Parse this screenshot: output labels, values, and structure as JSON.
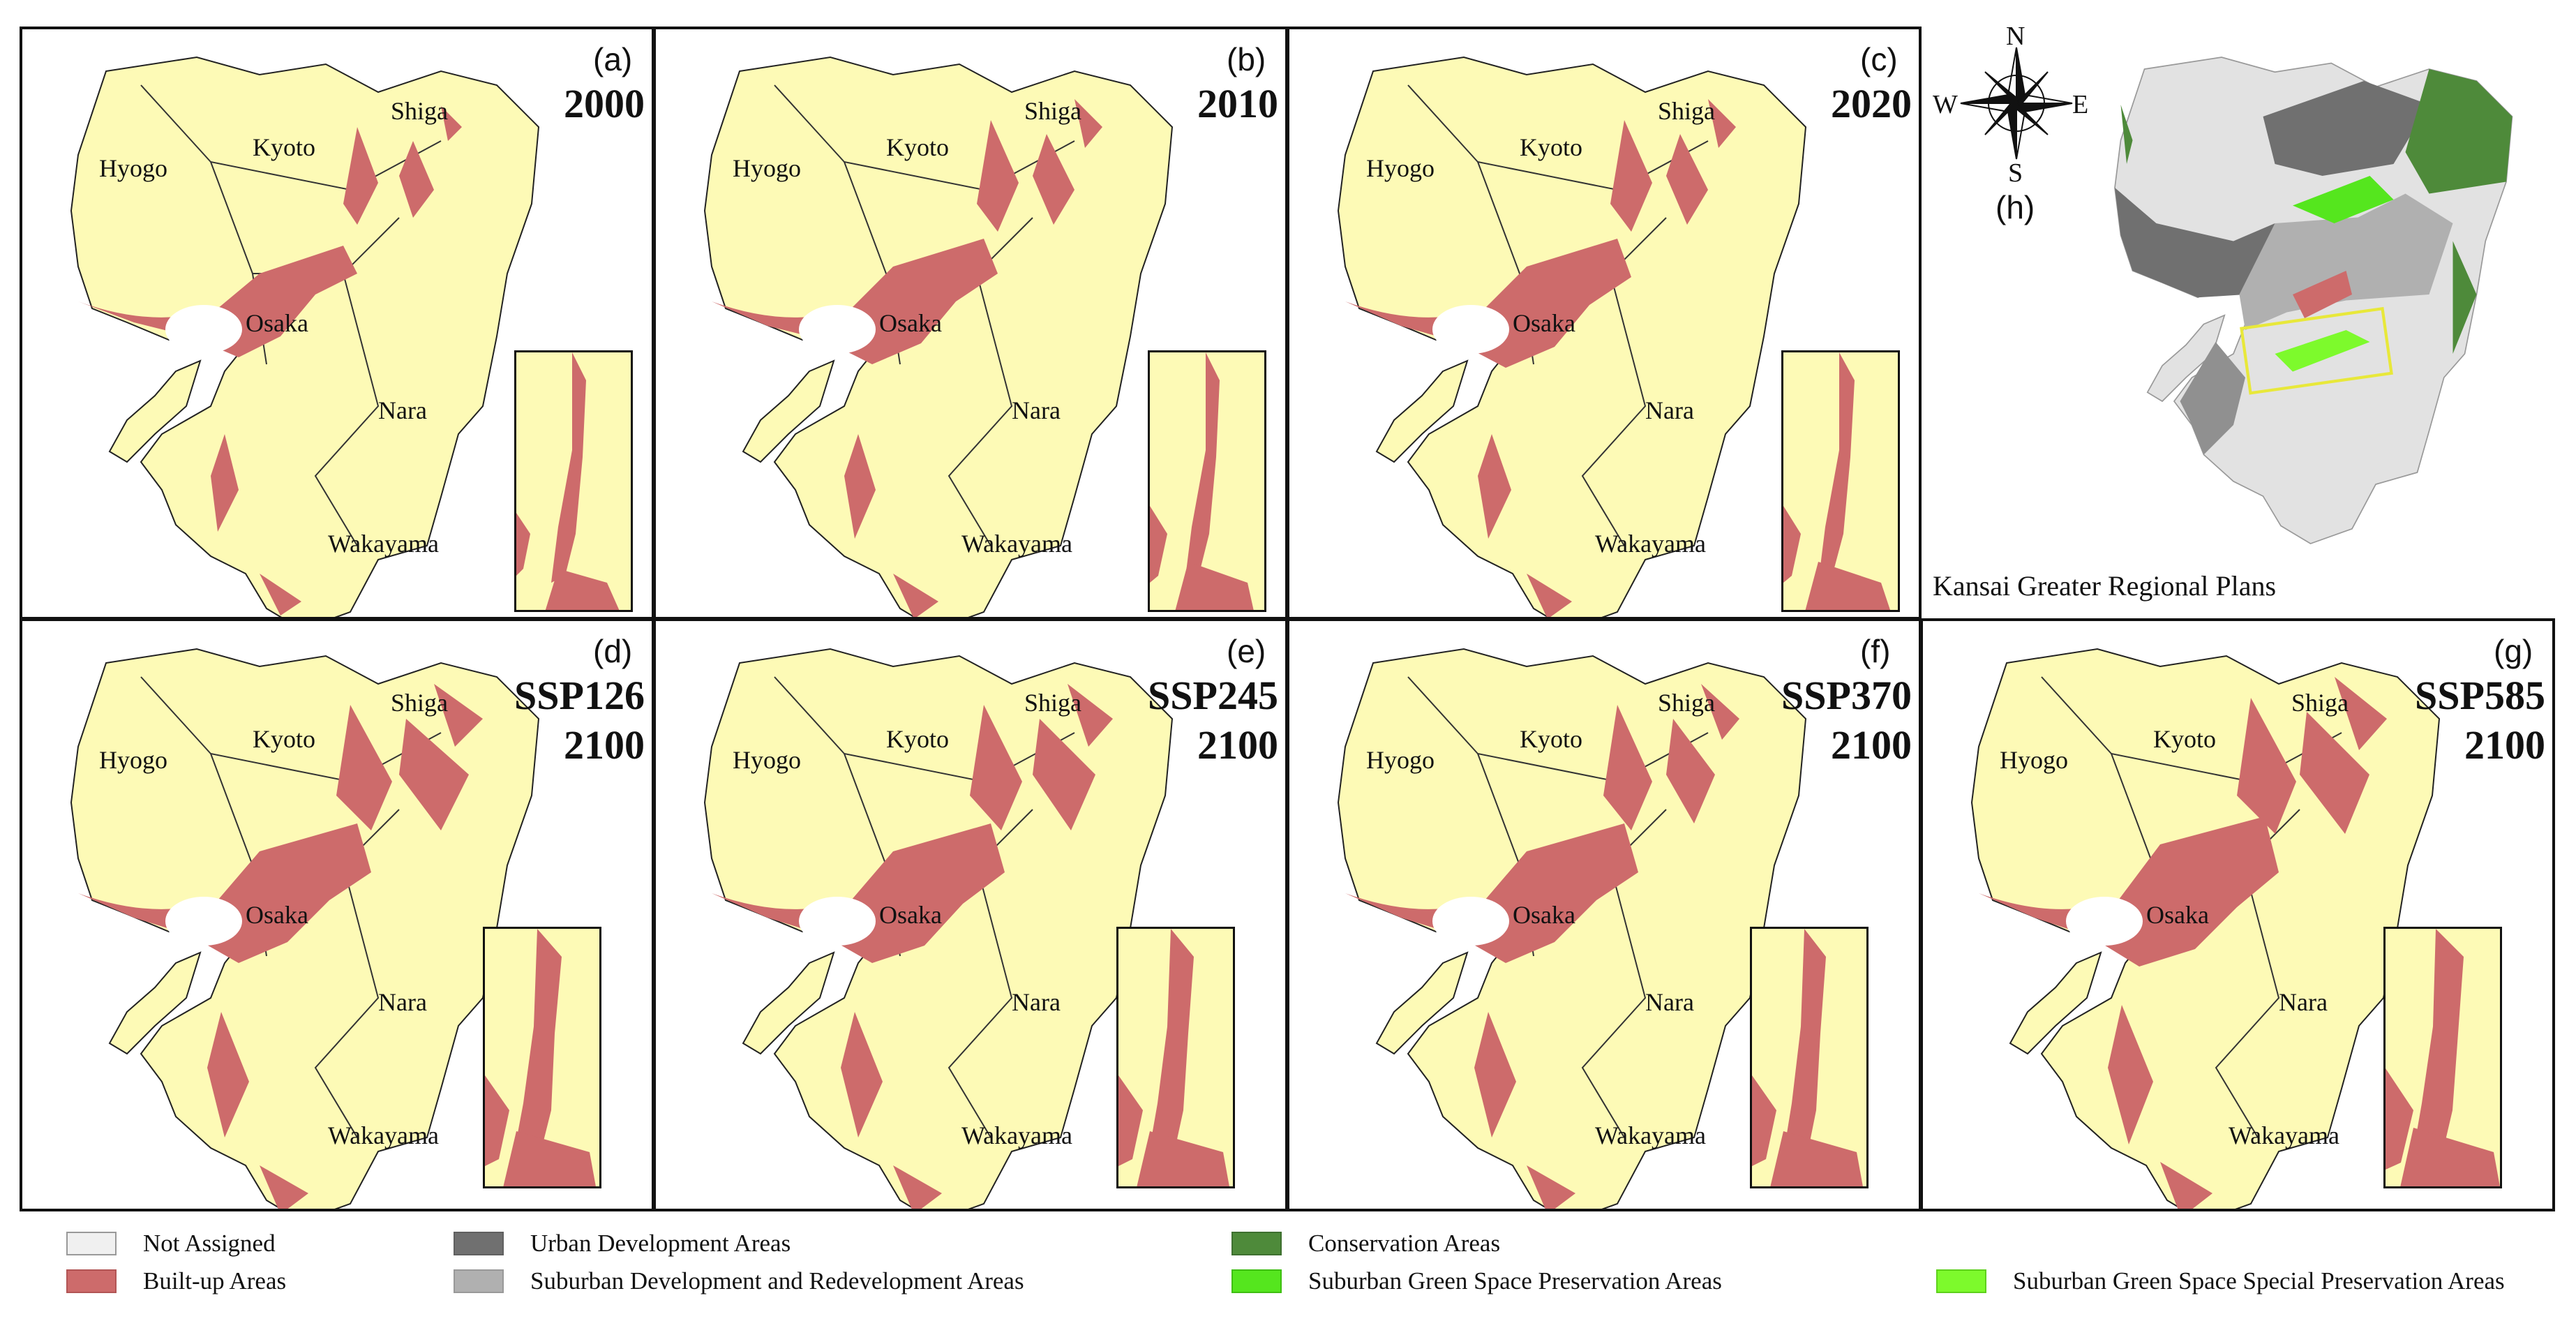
{
  "colors": {
    "land": "#fdfab6",
    "built_up": "#cd6b6b",
    "water": "#ffffff",
    "border": "#222222",
    "not_assigned": "#f0f0f0",
    "urban_dev": "#707070",
    "suburban_dev": "#b0b0b0",
    "conservation": "#4e8a3a",
    "green_pres": "#55e61e",
    "green_special": "#7dfa2c",
    "highlight_box": "#e8e83a"
  },
  "regions": [
    "Hyogo",
    "Kyoto",
    "Shiga",
    "Osaka",
    "Nara",
    "Wakayama"
  ],
  "panels": [
    {
      "id": "a",
      "label": "(a)",
      "line1": "2000",
      "line2": ""
    },
    {
      "id": "b",
      "label": "(b)",
      "line1": "2010",
      "line2": ""
    },
    {
      "id": "c",
      "label": "(c)",
      "line1": "2020",
      "line2": ""
    },
    {
      "id": "d",
      "label": "(d)",
      "line1": "SSP126",
      "line2": "2100"
    },
    {
      "id": "e",
      "label": "(e)",
      "line1": "SSP245",
      "line2": "2100"
    },
    {
      "id": "f",
      "label": "(f)",
      "line1": "SSP370",
      "line2": "2100"
    },
    {
      "id": "g",
      "label": "(g)",
      "line1": "SSP585",
      "line2": "2100"
    }
  ],
  "regional_plan": {
    "label": "(h)",
    "title": "Kansai Greater Regional Plans",
    "compass": {
      "n": "N",
      "s": "S",
      "e": "E",
      "w": "W"
    }
  },
  "legend": [
    {
      "label": "Not Assigned",
      "color_key": "not_assigned"
    },
    {
      "label": "Built-up Areas",
      "color_key": "built_up"
    },
    {
      "label": "Urban Development Areas",
      "color_key": "urban_dev"
    },
    {
      "label": "Suburban Development and Redevelopment Areas",
      "color_key": "suburban_dev"
    },
    {
      "label": "Conservation Areas",
      "color_key": "conservation"
    },
    {
      "label": "Suburban Green Space Preservation Areas",
      "color_key": "green_pres"
    },
    {
      "label": "Suburban Green Space Special Preservation Areas",
      "color_key": "green_special"
    }
  ]
}
